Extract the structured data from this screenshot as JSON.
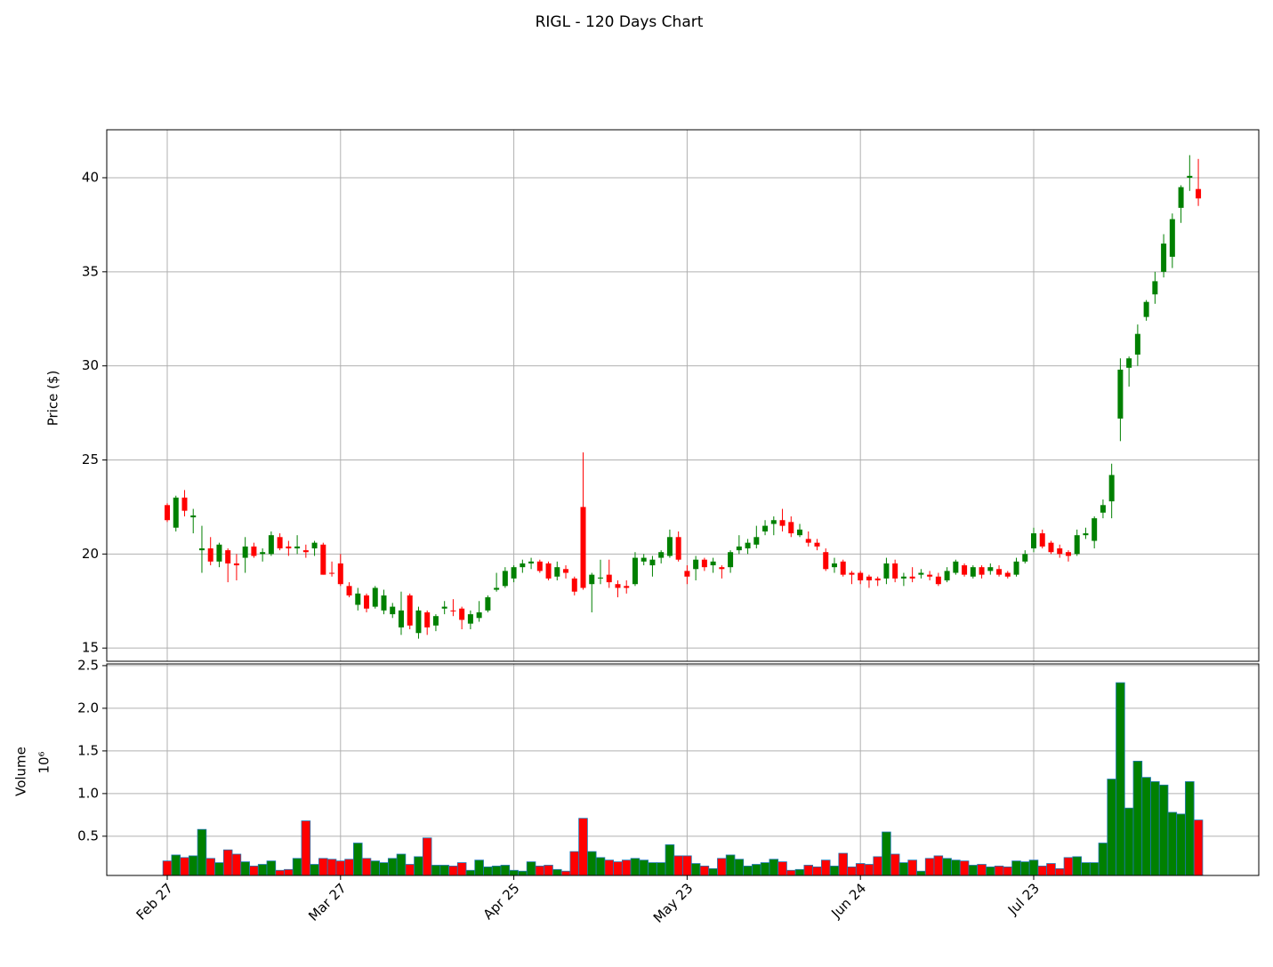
{
  "chart_data": {
    "type": "candlestick",
    "title": "RIGL - 120 Days Chart",
    "ylabel": "Price ($)",
    "volume_ylabel": "Volume",
    "volume_offset": "10⁶",
    "up_color": "#008000",
    "down_color": "#ff0000",
    "volume_edge_color": "#1f77b4",
    "grid": true,
    "categories": [
      "Feb 27",
      null,
      null,
      null,
      null,
      null,
      null,
      null,
      null,
      null,
      null,
      null,
      null,
      null,
      null,
      null,
      null,
      null,
      null,
      null,
      "Mar 27",
      null,
      null,
      null,
      null,
      null,
      null,
      null,
      null,
      null,
      null,
      null,
      null,
      null,
      null,
      null,
      null,
      null,
      null,
      null,
      "Apr 25",
      null,
      null,
      null,
      null,
      null,
      null,
      null,
      null,
      null,
      null,
      null,
      null,
      null,
      null,
      null,
      null,
      null,
      null,
      null,
      "May 23",
      null,
      null,
      null,
      null,
      null,
      null,
      null,
      null,
      null,
      null,
      null,
      null,
      null,
      null,
      null,
      null,
      null,
      null,
      null,
      "Jun 24",
      null,
      null,
      null,
      null,
      null,
      null,
      null,
      null,
      null,
      null,
      null,
      null,
      null,
      null,
      null,
      null,
      null,
      null,
      null,
      "Jul 23",
      null,
      null,
      null,
      null,
      null,
      null,
      null,
      null,
      null,
      null,
      null,
      null,
      null,
      null,
      null,
      null,
      null,
      null,
      null
    ],
    "open": [
      22.6,
      21.4,
      23.0,
      21.95,
      20.2,
      20.3,
      19.6,
      20.2,
      19.5,
      19.8,
      20.4,
      20.0,
      20.0,
      20.9,
      20.4,
      20.3,
      20.2,
      20.3,
      20.5,
      19.0,
      19.5,
      18.3,
      17.3,
      17.8,
      17.2,
      17.0,
      16.8,
      16.1,
      17.8,
      15.8,
      16.9,
      16.2,
      17.1,
      17.0,
      17.1,
      16.3,
      16.6,
      17.0,
      18.1,
      18.3,
      18.7,
      19.3,
      19.5,
      19.6,
      19.5,
      18.8,
      19.2,
      18.7,
      22.5,
      18.4,
      18.7,
      18.9,
      18.4,
      18.3,
      18.4,
      19.6,
      19.4,
      19.8,
      19.9,
      20.9,
      19.1,
      19.2,
      19.7,
      19.4,
      19.3,
      19.3,
      20.2,
      20.3,
      20.5,
      21.2,
      21.6,
      21.8,
      21.7,
      21.0,
      20.8,
      20.6,
      20.1,
      19.3,
      19.6,
      19.0,
      19.0,
      18.8,
      18.7,
      18.7,
      19.5,
      18.7,
      18.8,
      18.9,
      18.9,
      18.8,
      18.6,
      19.0,
      19.4,
      18.8,
      19.3,
      19.1,
      19.2,
      19.0,
      18.9,
      19.6,
      20.3,
      21.1,
      20.6,
      20.3,
      20.1,
      20.0,
      21.0,
      20.7,
      22.2,
      22.8,
      27.2,
      29.9,
      30.6,
      32.6,
      33.8,
      35.0,
      35.8,
      38.4,
      40.0,
      39.4
    ],
    "close": [
      21.8,
      23.0,
      22.3,
      22.05,
      20.3,
      19.6,
      20.5,
      19.5,
      19.4,
      20.4,
      19.9,
      20.1,
      21.0,
      20.3,
      20.3,
      20.4,
      20.1,
      20.6,
      18.9,
      18.95,
      18.4,
      17.8,
      17.9,
      17.1,
      18.2,
      17.8,
      17.2,
      17.0,
      16.2,
      17.0,
      16.1,
      16.7,
      17.2,
      16.95,
      16.5,
      16.8,
      16.9,
      17.7,
      18.2,
      19.1,
      19.3,
      19.5,
      19.6,
      19.1,
      18.7,
      19.3,
      19.0,
      18.0,
      18.2,
      18.9,
      18.75,
      18.5,
      18.2,
      18.2,
      19.8,
      19.8,
      19.7,
      20.1,
      20.9,
      19.7,
      18.8,
      19.7,
      19.3,
      19.6,
      19.2,
      20.1,
      20.4,
      20.6,
      20.9,
      21.5,
      21.8,
      21.5,
      21.1,
      21.3,
      20.6,
      20.4,
      19.2,
      19.5,
      18.9,
      18.9,
      18.6,
      18.6,
      18.6,
      19.5,
      18.7,
      18.8,
      18.7,
      19.0,
      18.8,
      18.4,
      19.1,
      19.6,
      18.9,
      19.3,
      18.9,
      19.3,
      18.9,
      18.8,
      19.6,
      20.0,
      21.1,
      20.4,
      20.1,
      20.0,
      19.9,
      21.0,
      21.1,
      21.9,
      22.6,
      24.2,
      29.8,
      30.4,
      31.7,
      33.4,
      34.5,
      36.5,
      37.8,
      39.5,
      40.1,
      38.9
    ],
    "high": [
      22.7,
      23.1,
      23.4,
      22.4,
      21.5,
      20.9,
      20.6,
      20.3,
      20.0,
      20.9,
      20.6,
      20.3,
      21.2,
      21.1,
      20.7,
      21.0,
      20.5,
      20.7,
      20.6,
      19.6,
      20.0,
      18.5,
      18.2,
      17.9,
      18.3,
      18.1,
      17.4,
      18.0,
      17.9,
      17.2,
      17.0,
      16.8,
      17.5,
      17.6,
      17.2,
      17.0,
      17.5,
      17.8,
      19.0,
      19.3,
      19.4,
      19.7,
      19.8,
      19.7,
      19.6,
      19.6,
      19.4,
      18.8,
      25.4,
      19.0,
      19.7,
      19.7,
      18.6,
      18.6,
      20.1,
      20.0,
      19.9,
      20.2,
      21.3,
      21.2,
      19.4,
      19.9,
      19.8,
      19.8,
      19.4,
      20.2,
      21.0,
      20.8,
      21.5,
      21.8,
      22.0,
      22.4,
      22.0,
      21.6,
      21.2,
      20.8,
      20.3,
      19.8,
      19.7,
      19.1,
      19.1,
      18.9,
      18.8,
      19.8,
      19.7,
      19.0,
      19.3,
      19.2,
      19.1,
      19.0,
      19.3,
      19.7,
      19.5,
      19.4,
      19.4,
      19.5,
      19.4,
      19.1,
      19.8,
      20.2,
      21.4,
      21.3,
      20.7,
      20.5,
      20.2,
      21.3,
      21.4,
      22.0,
      22.9,
      24.8,
      30.4,
      30.5,
      32.2,
      33.5,
      35.0,
      37.0,
      38.1,
      39.6,
      41.2,
      41.0
    ],
    "low": [
      21.7,
      21.2,
      22.0,
      21.1,
      19.0,
      19.4,
      19.3,
      18.5,
      18.6,
      19.0,
      19.8,
      19.6,
      19.9,
      20.2,
      19.9,
      20.0,
      19.8,
      19.9,
      18.9,
      18.8,
      18.3,
      17.7,
      17.0,
      16.9,
      17.1,
      16.8,
      16.6,
      15.7,
      16.0,
      15.5,
      15.7,
      15.9,
      16.8,
      16.7,
      16.0,
      16.0,
      16.4,
      16.9,
      18.0,
      18.2,
      18.5,
      19.0,
      19.2,
      19.0,
      18.6,
      18.6,
      18.7,
      17.8,
      18.1,
      16.9,
      18.4,
      18.2,
      17.7,
      17.9,
      18.3,
      19.4,
      18.8,
      19.5,
      19.8,
      19.6,
      18.4,
      18.6,
      19.1,
      19.0,
      18.7,
      19.0,
      20.0,
      20.0,
      20.3,
      21.0,
      21.0,
      21.2,
      20.9,
      20.9,
      20.4,
      20.2,
      19.1,
      19.0,
      18.8,
      18.4,
      18.4,
      18.2,
      18.3,
      18.4,
      18.5,
      18.3,
      18.5,
      18.7,
      18.6,
      18.3,
      18.5,
      18.9,
      18.8,
      18.7,
      18.7,
      18.9,
      18.8,
      18.7,
      18.8,
      19.5,
      20.1,
      20.3,
      20.0,
      19.8,
      19.6,
      19.9,
      20.8,
      20.3,
      21.9,
      21.9,
      26.0,
      28.9,
      30.0,
      32.4,
      33.3,
      34.7,
      35.2,
      37.6,
      39.3,
      38.5
    ],
    "volume": [
      0.21,
      0.28,
      0.25,
      0.27,
      0.58,
      0.24,
      0.19,
      0.34,
      0.29,
      0.2,
      0.15,
      0.17,
      0.21,
      0.1,
      0.11,
      0.24,
      0.68,
      0.17,
      0.24,
      0.23,
      0.21,
      0.23,
      0.42,
      0.24,
      0.21,
      0.19,
      0.24,
      0.29,
      0.17,
      0.26,
      0.48,
      0.16,
      0.16,
      0.15,
      0.19,
      0.1,
      0.22,
      0.14,
      0.15,
      0.16,
      0.1,
      0.09,
      0.2,
      0.15,
      0.16,
      0.11,
      0.09,
      0.32,
      0.71,
      0.32,
      0.25,
      0.22,
      0.2,
      0.22,
      0.24,
      0.22,
      0.19,
      0.19,
      0.4,
      0.27,
      0.27,
      0.18,
      0.15,
      0.12,
      0.24,
      0.28,
      0.23,
      0.15,
      0.17,
      0.19,
      0.23,
      0.2,
      0.1,
      0.11,
      0.16,
      0.14,
      0.22,
      0.15,
      0.3,
      0.14,
      0.18,
      0.17,
      0.26,
      0.55,
      0.29,
      0.19,
      0.22,
      0.09,
      0.24,
      0.27,
      0.24,
      0.22,
      0.21,
      0.16,
      0.17,
      0.14,
      0.15,
      0.14,
      0.21,
      0.2,
      0.22,
      0.15,
      0.18,
      0.12,
      0.25,
      0.26,
      0.19,
      0.19,
      0.42,
      1.17,
      2.3,
      0.83,
      1.38,
      1.19,
      1.14,
      1.1,
      0.78,
      0.76,
      1.14,
      0.69
    ],
    "ylim": [
      14.3,
      42.55
    ],
    "yticks": [
      15,
      20,
      25,
      30,
      35,
      40
    ],
    "volume_ylim": [
      0.04,
      2.52
    ],
    "volume_yticks": [
      0.5,
      {
        "value": 1.0,
        "label": "1.0"
      },
      1.5,
      {
        "value": 2.0,
        "label": "2.0"
      },
      2.5
    ]
  }
}
